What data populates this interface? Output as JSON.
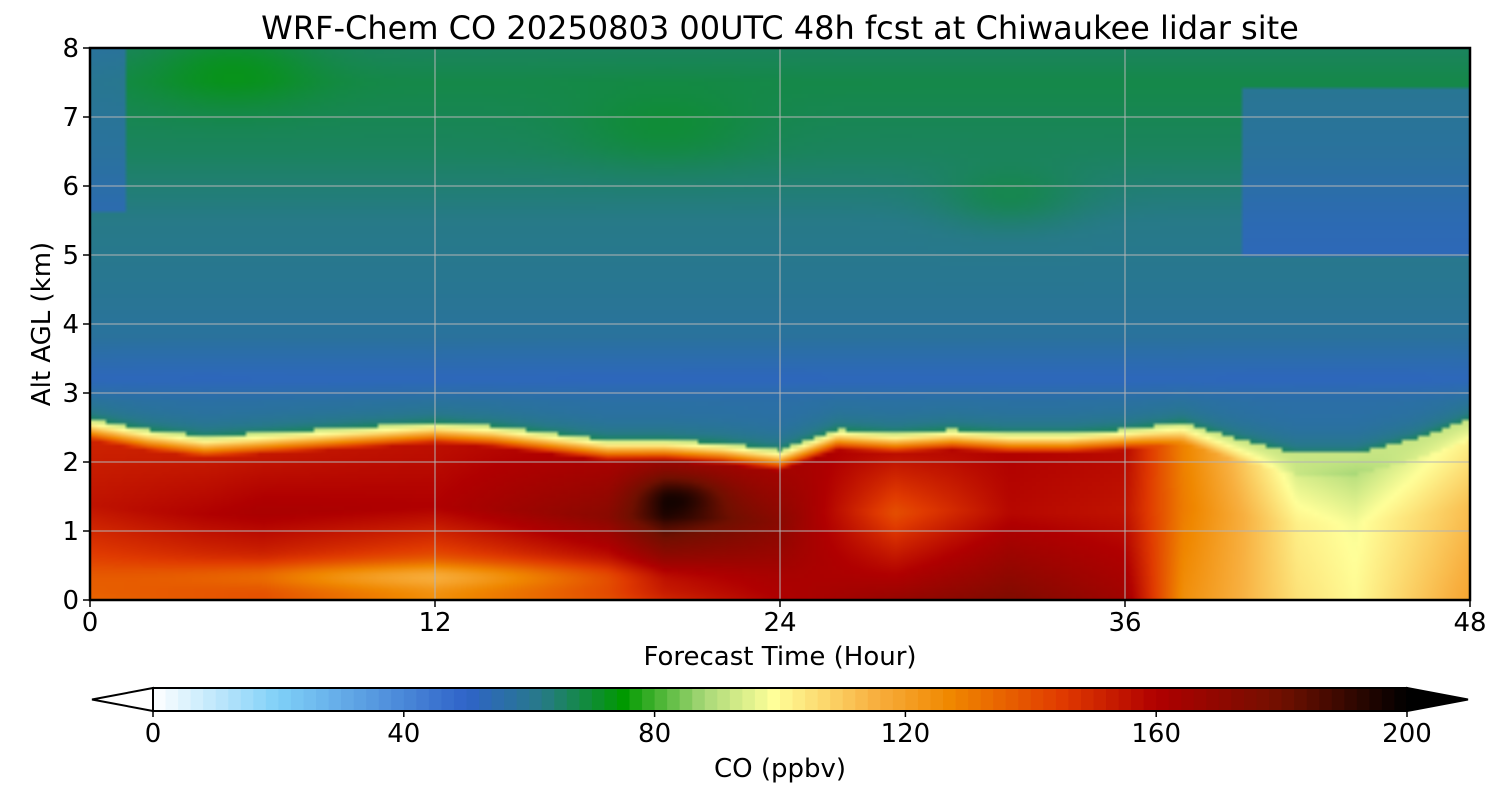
{
  "chart_data": {
    "type": "heatmap",
    "title": "WRF-Chem CO  20250803 00UTC 48h fcst at Chiwaukee lidar site",
    "xlabel": "Forecast Time (Hour)",
    "ylabel": "Alt AGL (km)",
    "xlim": [
      0,
      48
    ],
    "ylim": [
      0,
      8
    ],
    "xticks": [
      0,
      12,
      24,
      36,
      48
    ],
    "yticks": [
      0,
      1,
      2,
      3,
      4,
      5,
      6,
      7,
      8
    ],
    "grid": true,
    "colorbar": {
      "label": "CO  (ppbv)",
      "range": [
        0,
        200
      ],
      "ticks": [
        0,
        40,
        80,
        120,
        160,
        200
      ],
      "extend": "both",
      "colors": [
        {
          "value": 0,
          "color": "#ffffff"
        },
        {
          "value": 20,
          "color": "#7fd0f8"
        },
        {
          "value": 50,
          "color": "#2f63c8"
        },
        {
          "value": 62,
          "color": "#277a88"
        },
        {
          "value": 75,
          "color": "#009900"
        },
        {
          "value": 88,
          "color": "#a8d878"
        },
        {
          "value": 99,
          "color": "#ffff99"
        },
        {
          "value": 115,
          "color": "#f8b040"
        },
        {
          "value": 127,
          "color": "#f08800"
        },
        {
          "value": 145,
          "color": "#e03a00"
        },
        {
          "value": 160,
          "color": "#b00000"
        },
        {
          "value": 180,
          "color": "#701000"
        },
        {
          "value": 200,
          "color": "#000000"
        }
      ]
    },
    "hours": [
      0,
      2,
      4,
      6,
      8,
      10,
      12,
      14,
      16,
      18,
      20,
      22,
      24,
      26,
      28,
      30,
      32,
      34,
      36,
      38,
      40,
      42,
      44,
      46,
      48
    ],
    "altitudes_km": [
      0,
      0.25,
      0.5,
      0.75,
      1,
      1.25,
      1.5,
      1.75,
      2,
      2.25,
      2.5,
      2.75,
      3,
      3.5,
      4,
      4.5,
      5,
      5.5,
      6,
      6.5,
      7,
      7.5,
      8
    ],
    "inversion_top_km": [
      2.5,
      2.35,
      2.25,
      2.3,
      2.35,
      2.4,
      2.45,
      2.4,
      2.3,
      2.2,
      2.2,
      2.15,
      2.05,
      2.35,
      2.3,
      2.35,
      2.3,
      2.3,
      2.35,
      2.45,
      2.2,
      2.0,
      2.0,
      2.2,
      2.5
    ],
    "upper_profile_ppbv": [
      {
        "alt_km": 2.9,
        "ppbv": 56
      },
      {
        "alt_km": 3.2,
        "ppbv": 52
      },
      {
        "alt_km": 3.8,
        "ppbv": 58
      },
      {
        "alt_km": 4.5,
        "ppbv": 60
      },
      {
        "alt_km": 5.5,
        "ppbv": 62
      },
      {
        "alt_km": 6.5,
        "ppbv": 66
      },
      {
        "alt_km": 7.5,
        "ppbv": 68
      },
      {
        "alt_km": 8,
        "ppbv": 66
      }
    ],
    "boundary_layer_ppbv_by_hour": [
      {
        "hour": 0,
        "surface": 135,
        "mid": 155,
        "top": 150
      },
      {
        "hour": 6,
        "surface": 140,
        "mid": 162,
        "top": 152
      },
      {
        "hour": 12,
        "surface": 125,
        "mid": 160,
        "top": 155
      },
      {
        "hour": 18,
        "surface": 140,
        "mid": 172,
        "top": 160
      },
      {
        "hour": 20,
        "surface": 150,
        "mid": 190,
        "top": 162
      },
      {
        "hour": 24,
        "surface": 160,
        "mid": 172,
        "top": 162
      },
      {
        "hour": 28,
        "surface": 168,
        "mid": 140,
        "top": 160
      },
      {
        "hour": 32,
        "surface": 175,
        "mid": 158,
        "top": 160
      },
      {
        "hour": 36,
        "surface": 165,
        "mid": 155,
        "top": 158
      },
      {
        "hour": 38,
        "surface": 125,
        "mid": 130,
        "top": 128
      },
      {
        "hour": 42,
        "surface": 105,
        "mid": 102,
        "top": 92
      },
      {
        "hour": 44,
        "surface": 100,
        "mid": 98,
        "top": 88
      },
      {
        "hour": 48,
        "surface": 118,
        "mid": 112,
        "top": 100
      }
    ]
  }
}
